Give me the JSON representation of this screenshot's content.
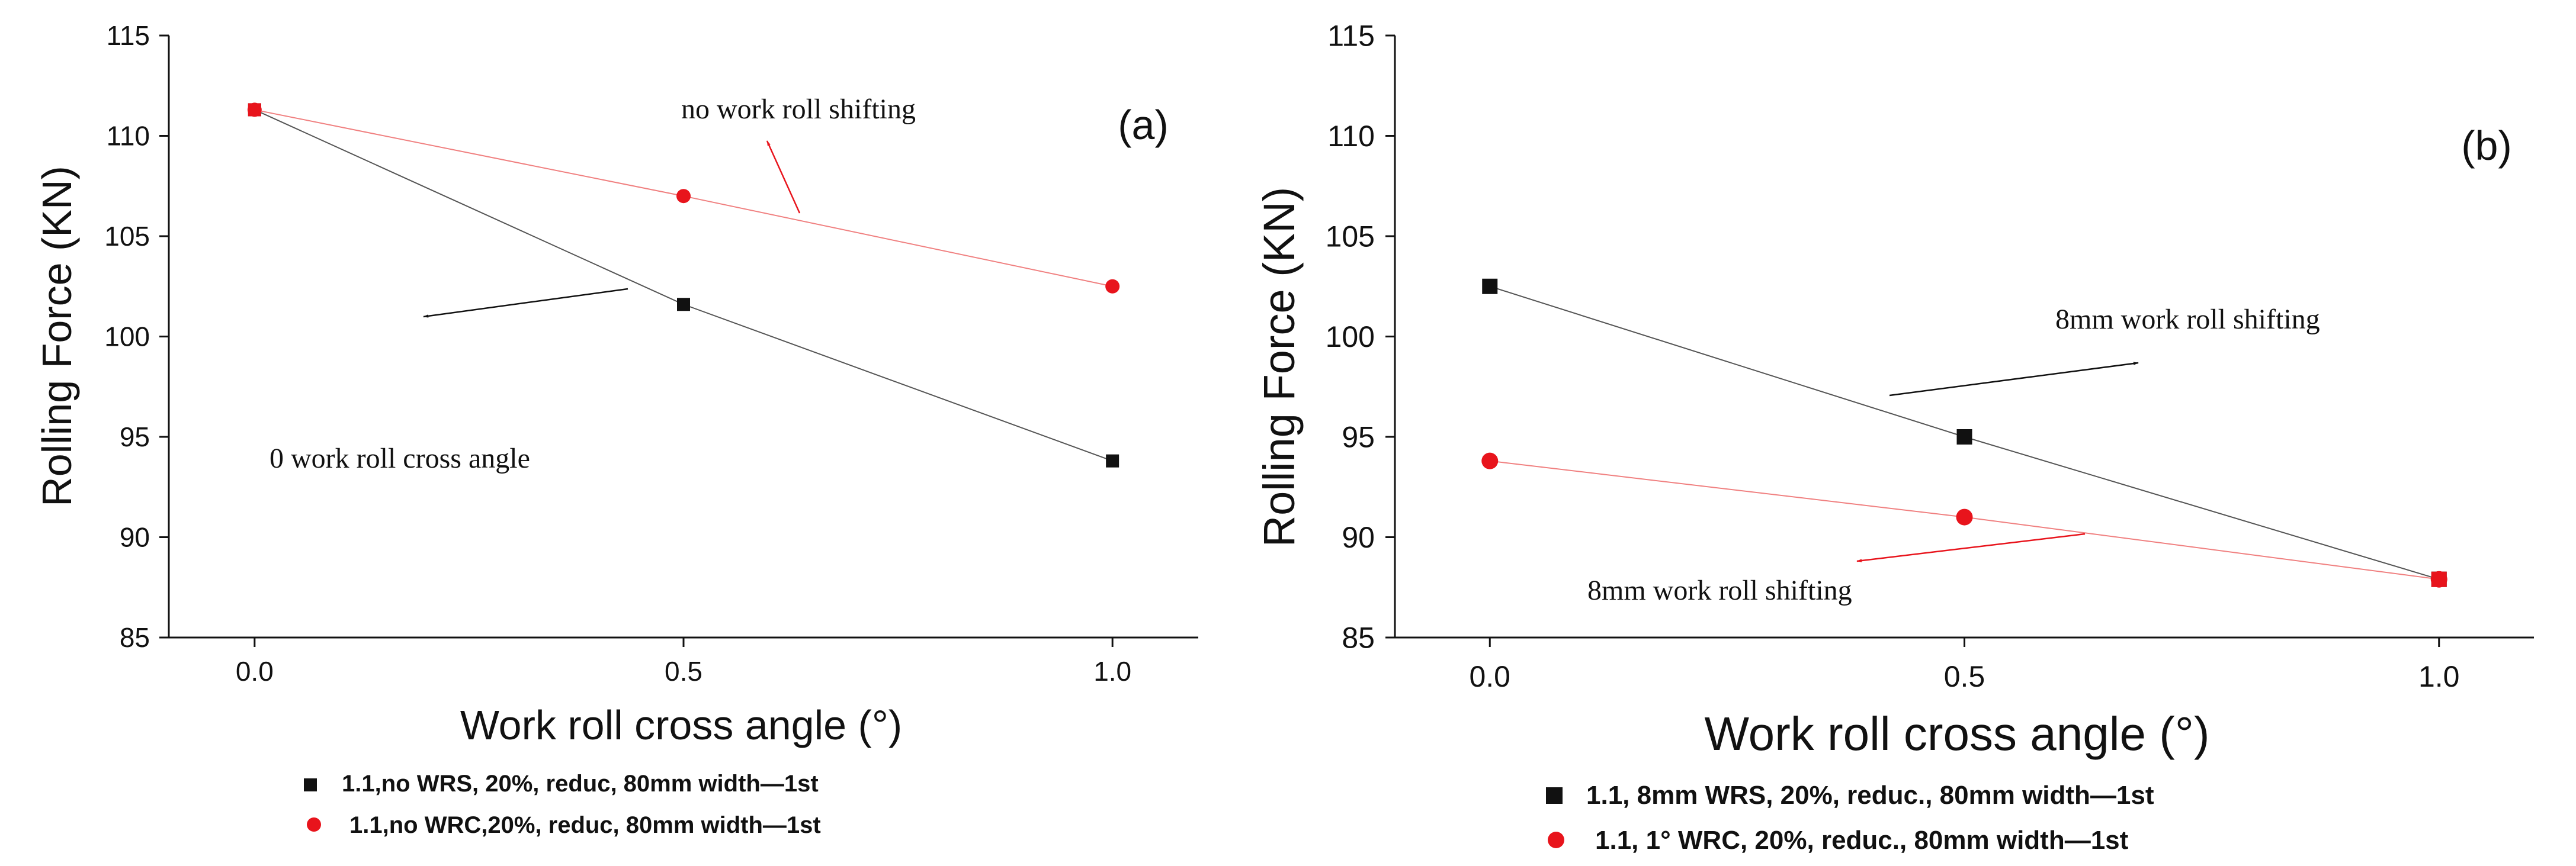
{
  "chart_data": [
    {
      "type": "line",
      "panel_label": "(a)",
      "xlabel": "Work roll cross angle (°)",
      "ylabel": "Rolling Force (KN)",
      "x": [
        0.0,
        0.5,
        1.0
      ],
      "x_tick_labels": [
        "0.0",
        "0.5",
        "1.0"
      ],
      "xlim": [
        -0.1,
        1.1
      ],
      "ylim": [
        85,
        115
      ],
      "y_ticks": [
        85,
        90,
        95,
        100,
        105,
        110,
        115
      ],
      "grid": false,
      "series": [
        {
          "name": "1.1,no WRS, 20%, reduc, 80mm width—1st",
          "marker": "square",
          "color": "#111111",
          "values": [
            111.3,
            101.6,
            93.8
          ]
        },
        {
          "name": "1.1,no WRC,20%, reduc, 80mm width—1st",
          "marker": "circle",
          "color": "#e8141c",
          "values": [
            111.3,
            107.0,
            102.5
          ]
        }
      ],
      "annotations": [
        "no work roll shifting",
        "0 work roll cross angle"
      ],
      "legend_position": "bottom"
    },
    {
      "type": "line",
      "panel_label": "(b)",
      "xlabel": "Work roll cross angle (°)",
      "ylabel": "Rolling Force (KN)",
      "x": [
        0.0,
        0.5,
        1.0
      ],
      "x_tick_labels": [
        "0.0",
        "0.5",
        "1.0"
      ],
      "xlim": [
        -0.1,
        1.1
      ],
      "ylim": [
        85,
        115
      ],
      "y_ticks": [
        85,
        90,
        95,
        100,
        105,
        110,
        115
      ],
      "grid": false,
      "series": [
        {
          "name": "1.1, 8mm WRS, 20%, reduc., 80mm width—1st",
          "marker": "square",
          "color": "#111111",
          "values": [
            102.5,
            95.0,
            87.9
          ]
        },
        {
          "name": "1.1, 1° WRC, 20%, reduc., 80mm width—1st",
          "marker": "circle",
          "color": "#e8141c",
          "values": [
            93.8,
            91.0,
            87.9
          ]
        }
      ],
      "annotations": [
        "8mm work roll shifting",
        "8mm work roll shifting"
      ],
      "legend_position": "bottom"
    }
  ]
}
